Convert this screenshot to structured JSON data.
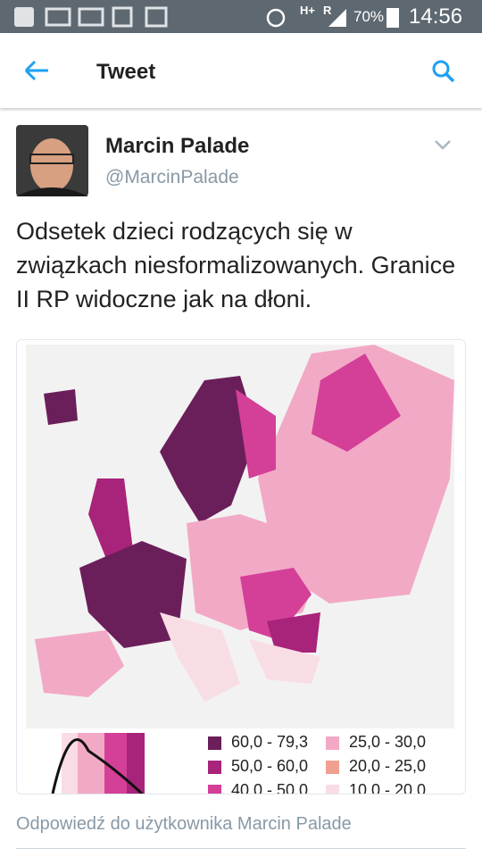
{
  "status_bar": {
    "network": "H+",
    "roaming": "R",
    "battery": "70%",
    "time": "14:56"
  },
  "header": {
    "title": "Tweet"
  },
  "tweet": {
    "author_name": "Marcin Palade",
    "author_handle": "@MarcinPalade",
    "text": "Odsetek dzieci rodzących się w związkach niesformalizowanych. Granice II RP widoczne jak na dłoni.",
    "image_legend": [
      {
        "label": "60,0 - 79,3",
        "color": "#6b1f5a"
      },
      {
        "label": "50,0 - 60,0",
        "color": "#a8237a"
      },
      {
        "label": "40,0 - 50,0",
        "color": "#d43f98"
      },
      {
        "label": "25,0 - 30,0",
        "color": "#f2a9c6"
      },
      {
        "label": "20,0 - 25,0",
        "color": "#f0a090"
      },
      {
        "label": "10,0 - 20,0",
        "color": "#f9dde4"
      }
    ]
  },
  "reply_bar": {
    "placeholder": "Odpowiedź do użytkownika Marcin Palade"
  }
}
